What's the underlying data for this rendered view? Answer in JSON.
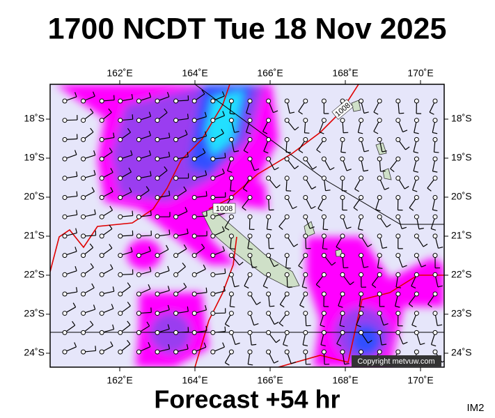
{
  "header": {
    "title": "1700 NCDT Tue 18 Nov 2025"
  },
  "map": {
    "lon_labels": [
      "162˚E",
      "164˚E",
      "166˚E",
      "168˚E",
      "170˚E"
    ],
    "lat_labels": [
      "18˚S",
      "19˚S",
      "20˚S",
      "21˚S",
      "22˚S",
      "23˚S",
      "24˚S"
    ],
    "isobar_labels": [
      "1008",
      "1008"
    ],
    "copyright": "Copyright metvuw.com"
  },
  "footer": {
    "forecast": "Forecast +54 hr",
    "code": "IM2"
  }
}
